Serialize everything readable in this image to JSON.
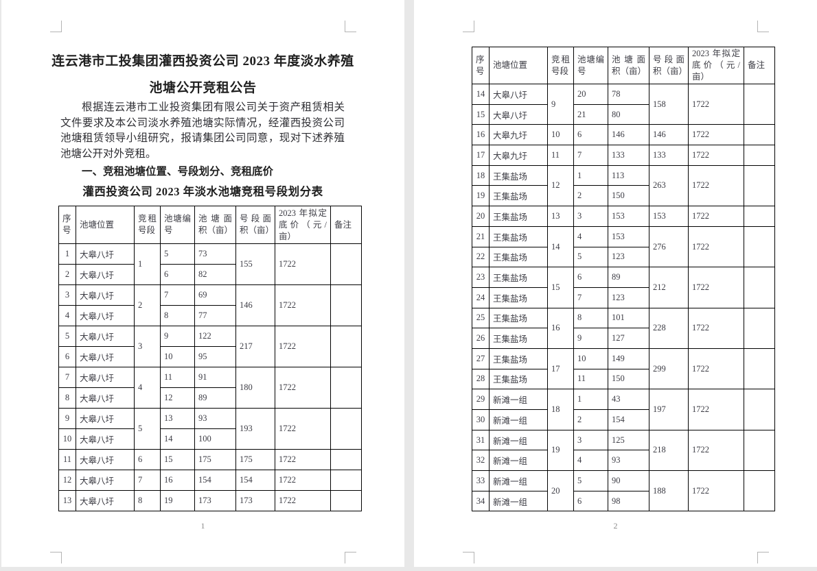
{
  "document": {
    "title_line1": "连云港市工投集团灌西投资公司 2023 年度淡水养殖",
    "title_line2": "池塘公开竞租公告",
    "paragraph": "根据连云港市工业投资集团有限公司关于资产租赁相关文件要求及本公司淡水养殖池塘实际情况，经灌西投资公司池塘租赁领导小组研究，报请集团公司同意，现对下述养殖池塘公开对外竞租。",
    "section_heading": "一、竞租池塘位置、号段划分、竞租底价",
    "table_title": "灌西投资公司 2023 年淡水池塘竞租号段划分表",
    "page1_number": "1",
    "page2_number": "2"
  },
  "table": {
    "headers": [
      "序号",
      "池塘位置",
      "竞租号段",
      "池塘编号",
      "池塘面积（亩）",
      "号段面积（亩）",
      "2023 年拟定底价（元/亩）",
      "备注"
    ],
    "page1_groups": [
      {
        "seg": "1",
        "seg_area": "155",
        "price": "1722",
        "remark": "",
        "rows": [
          {
            "no": "1",
            "loc": "大皋八圩",
            "pond": "5",
            "area": "73"
          },
          {
            "no": "2",
            "loc": "大皋八圩",
            "pond": "6",
            "area": "82"
          }
        ]
      },
      {
        "seg": "2",
        "seg_area": "146",
        "price": "1722",
        "remark": "",
        "rows": [
          {
            "no": "3",
            "loc": "大皋八圩",
            "pond": "7",
            "area": "69"
          },
          {
            "no": "4",
            "loc": "大皋八圩",
            "pond": "8",
            "area": "77"
          }
        ]
      },
      {
        "seg": "3",
        "seg_area": "217",
        "price": "1722",
        "remark": "",
        "rows": [
          {
            "no": "5",
            "loc": "大皋八圩",
            "pond": "9",
            "area": "122"
          },
          {
            "no": "6",
            "loc": "大皋八圩",
            "pond": "10",
            "area": "95"
          }
        ]
      },
      {
        "seg": "4",
        "seg_area": "180",
        "price": "1722",
        "remark": "",
        "rows": [
          {
            "no": "7",
            "loc": "大皋八圩",
            "pond": "11",
            "area": "91"
          },
          {
            "no": "8",
            "loc": "大皋八圩",
            "pond": "12",
            "area": "89"
          }
        ]
      },
      {
        "seg": "5",
        "seg_area": "193",
        "price": "1722",
        "remark": "",
        "rows": [
          {
            "no": "9",
            "loc": "大皋八圩",
            "pond": "13",
            "area": "93"
          },
          {
            "no": "10",
            "loc": "大皋八圩",
            "pond": "14",
            "area": "100"
          }
        ]
      },
      {
        "seg": "6",
        "seg_area": "175",
        "price": "1722",
        "remark": "",
        "rows": [
          {
            "no": "11",
            "loc": "大皋八圩",
            "pond": "15",
            "area": "175"
          }
        ]
      },
      {
        "seg": "7",
        "seg_area": "154",
        "price": "1722",
        "remark": "",
        "rows": [
          {
            "no": "12",
            "loc": "大皋八圩",
            "pond": "16",
            "area": "154"
          }
        ]
      },
      {
        "seg": "8",
        "seg_area": "173",
        "price": "1722",
        "remark": "",
        "rows": [
          {
            "no": "13",
            "loc": "大皋八圩",
            "pond": "19",
            "area": "173"
          }
        ]
      }
    ],
    "page2_groups": [
      {
        "seg": "9",
        "seg_area": "158",
        "price": "1722",
        "remark": "",
        "rows": [
          {
            "no": "14",
            "loc": "大皋八圩",
            "pond": "20",
            "area": "78"
          },
          {
            "no": "15",
            "loc": "大皋八圩",
            "pond": "21",
            "area": "80"
          }
        ]
      },
      {
        "seg": "10",
        "seg_area": "146",
        "price": "1722",
        "remark": "",
        "rows": [
          {
            "no": "16",
            "loc": "大皋九圩",
            "pond": "6",
            "area": "146"
          }
        ]
      },
      {
        "seg": "11",
        "seg_area": "133",
        "price": "1722",
        "remark": "",
        "rows": [
          {
            "no": "17",
            "loc": "大皋九圩",
            "pond": "7",
            "area": "133"
          }
        ]
      },
      {
        "seg": "12",
        "seg_area": "263",
        "price": "1722",
        "remark": "",
        "rows": [
          {
            "no": "18",
            "loc": "王集盐场",
            "pond": "1",
            "area": "113"
          },
          {
            "no": "19",
            "loc": "王集盐场",
            "pond": "2",
            "area": "150"
          }
        ]
      },
      {
        "seg": "13",
        "seg_area": "153",
        "price": "1722",
        "remark": "",
        "rows": [
          {
            "no": "20",
            "loc": "王集盐场",
            "pond": "3",
            "area": "153"
          }
        ]
      },
      {
        "seg": "14",
        "seg_area": "276",
        "price": "1722",
        "remark": "",
        "rows": [
          {
            "no": "21",
            "loc": "王集盐场",
            "pond": "4",
            "area": "153"
          },
          {
            "no": "22",
            "loc": "王集盐场",
            "pond": "5",
            "area": "123"
          }
        ]
      },
      {
        "seg": "15",
        "seg_area": "212",
        "price": "1722",
        "remark": "",
        "rows": [
          {
            "no": "23",
            "loc": "王集盐场",
            "pond": "6",
            "area": "89"
          },
          {
            "no": "24",
            "loc": "王集盐场",
            "pond": "7",
            "area": "123"
          }
        ]
      },
      {
        "seg": "16",
        "seg_area": "228",
        "price": "1722",
        "remark": "",
        "rows": [
          {
            "no": "25",
            "loc": "王集盐场",
            "pond": "8",
            "area": "101"
          },
          {
            "no": "26",
            "loc": "王集盐场",
            "pond": "9",
            "area": "127"
          }
        ]
      },
      {
        "seg": "17",
        "seg_area": "299",
        "price": "1722",
        "remark": "",
        "rows": [
          {
            "no": "27",
            "loc": "王集盐场",
            "pond": "10",
            "area": "149"
          },
          {
            "no": "28",
            "loc": "王集盐场",
            "pond": "11",
            "area": "150"
          }
        ]
      },
      {
        "seg": "18",
        "seg_area": "197",
        "price": "1722",
        "remark": "",
        "rows": [
          {
            "no": "29",
            "loc": "新滩一组",
            "pond": "1",
            "area": "43"
          },
          {
            "no": "30",
            "loc": "新滩一组",
            "pond": "2",
            "area": "154"
          }
        ]
      },
      {
        "seg": "19",
        "seg_area": "218",
        "price": "1722",
        "remark": "",
        "rows": [
          {
            "no": "31",
            "loc": "新滩一组",
            "pond": "3",
            "area": "125"
          },
          {
            "no": "32",
            "loc": "新滩一组",
            "pond": "4",
            "area": "93"
          }
        ]
      },
      {
        "seg": "20",
        "seg_area": "188",
        "price": "1722",
        "remark": "",
        "rows": [
          {
            "no": "33",
            "loc": "新滩一组",
            "pond": "5",
            "area": "90"
          },
          {
            "no": "34",
            "loc": "新滩一组",
            "pond": "6",
            "area": "98"
          }
        ]
      }
    ]
  },
  "colors": {
    "canvas_gray": "#e8e8e8",
    "page_white": "#ffffff",
    "table_border": "#000000",
    "body_text": "#2e2e33",
    "mark_gray": "#b3b3b3"
  }
}
